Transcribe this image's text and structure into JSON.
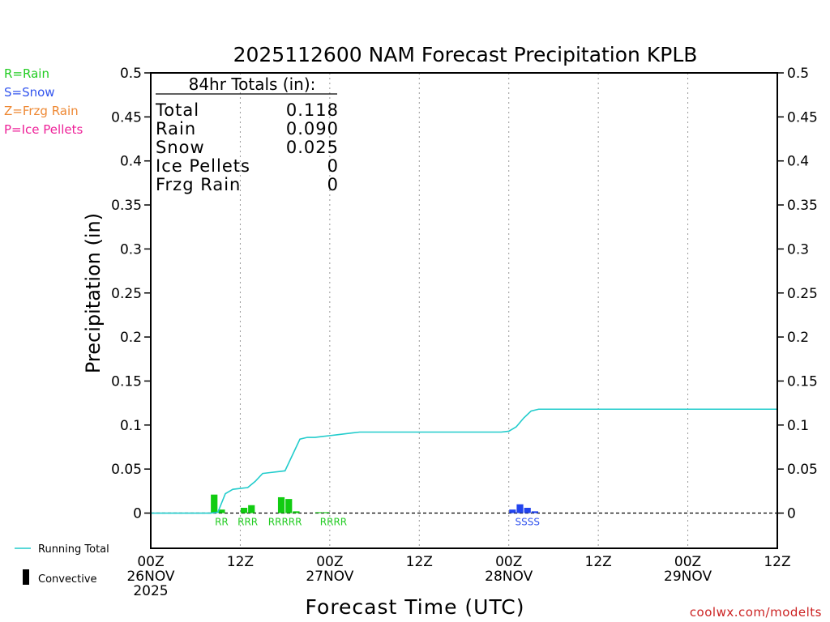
{
  "chart_data": {
    "type": "bar",
    "title": "2025112600 NAM Forecast Precipitation KPLB",
    "ylabel": "Precipitation (in)",
    "xlabel": "Forecast Time (UTC)",
    "xlim": [
      0,
      84
    ],
    "ylim": [
      -0.04,
      0.5
    ],
    "y_ticks": [
      0,
      0.05,
      0.1,
      0.15,
      0.2,
      0.25,
      0.3,
      0.35,
      0.4,
      0.45,
      0.5
    ],
    "y_tick_labels": [
      "0",
      "0.05",
      "0.1",
      "0.15",
      "0.2",
      "0.25",
      "0.3",
      "0.35",
      "0.4",
      "0.45",
      "0.5"
    ],
    "x_ticks": [
      {
        "hour": 0,
        "lines": [
          "00Z",
          "26NOV",
          "2025"
        ]
      },
      {
        "hour": 12,
        "lines": [
          "12Z"
        ]
      },
      {
        "hour": 24,
        "lines": [
          "00Z",
          "27NOV"
        ]
      },
      {
        "hour": 36,
        "lines": [
          "12Z"
        ]
      },
      {
        "hour": 48,
        "lines": [
          "00Z",
          "28NOV"
        ]
      },
      {
        "hour": 60,
        "lines": [
          "12Z"
        ]
      },
      {
        "hour": 72,
        "lines": [
          "00Z",
          "29NOV"
        ]
      },
      {
        "hour": 84,
        "lines": [
          "12Z"
        ]
      }
    ],
    "grid": "vertical-dotted",
    "ptype_legend": [
      {
        "label": "R=Rain",
        "color": "#22cc22"
      },
      {
        "label": "S=Snow",
        "color": "#3355ee"
      },
      {
        "label": "Z=Frzg Rain",
        "color": "#ee8833"
      },
      {
        "label": "P=Ice Pellets",
        "color": "#ee2299"
      }
    ],
    "series": [
      {
        "name": "Rain",
        "color": "#11cc11",
        "hours": [
          9,
          10,
          13,
          14,
          18,
          19,
          20,
          23,
          24
        ],
        "values": [
          0.021,
          0.004,
          0.006,
          0.009,
          0.018,
          0.016,
          0.002,
          0.001,
          0.001
        ]
      },
      {
        "name": "Snow",
        "color": "#2244ee",
        "hours": [
          49,
          50,
          51,
          52
        ],
        "values": [
          0.004,
          0.01,
          0.006,
          0.002
        ]
      }
    ],
    "running_total": {
      "name": "Running Total",
      "color": "#22cccc",
      "hours": [
        0,
        3,
        6,
        7,
        8,
        9,
        10,
        11,
        12,
        13,
        14,
        15,
        16,
        17,
        18,
        19,
        20,
        21,
        22,
        23,
        24,
        25,
        26,
        27,
        28,
        30,
        36,
        42,
        45,
        47,
        48,
        49,
        50,
        51,
        52,
        54,
        60,
        72,
        84
      ],
      "values": [
        0,
        0,
        0,
        0,
        0,
        0.001,
        0.022,
        0.027,
        0.028,
        0.029,
        0.036,
        0.045,
        0.046,
        0.047,
        0.048,
        0.066,
        0.084,
        0.086,
        0.086,
        0.087,
        0.088,
        0.089,
        0.09,
        0.091,
        0.092,
        0.092,
        0.092,
        0.092,
        0.092,
        0.092,
        0.093,
        0.098,
        0.108,
        0.116,
        0.118,
        0.118,
        0.118,
        0.118,
        0.118
      ]
    },
    "ptype_labels": [
      {
        "text": "RR",
        "center_hour": 9.5,
        "color": "#22cc22"
      },
      {
        "text": "RRR",
        "center_hour": 13,
        "color": "#22cc22"
      },
      {
        "text": "RRRRR",
        "center_hour": 18,
        "color": "#22cc22"
      },
      {
        "text": "RRRR",
        "center_hour": 24.5,
        "color": "#22cc22"
      },
      {
        "text": "SSSS",
        "center_hour": 50.5,
        "color": "#3355ee"
      }
    ],
    "totals_box": {
      "header": "84hr Totals (in):",
      "rows": [
        {
          "label": "Total",
          "value": "0.118"
        },
        {
          "label": "Rain",
          "value": "0.090"
        },
        {
          "label": "Snow",
          "value": "0.025"
        },
        {
          "label": "Ice Pellets",
          "value": "0"
        },
        {
          "label": "Frzg Rain",
          "value": "0"
        }
      ]
    },
    "bottom_legend": {
      "running_total": "Running Total",
      "convective": "Convective"
    },
    "credit": "coolwx.com/modelts"
  }
}
